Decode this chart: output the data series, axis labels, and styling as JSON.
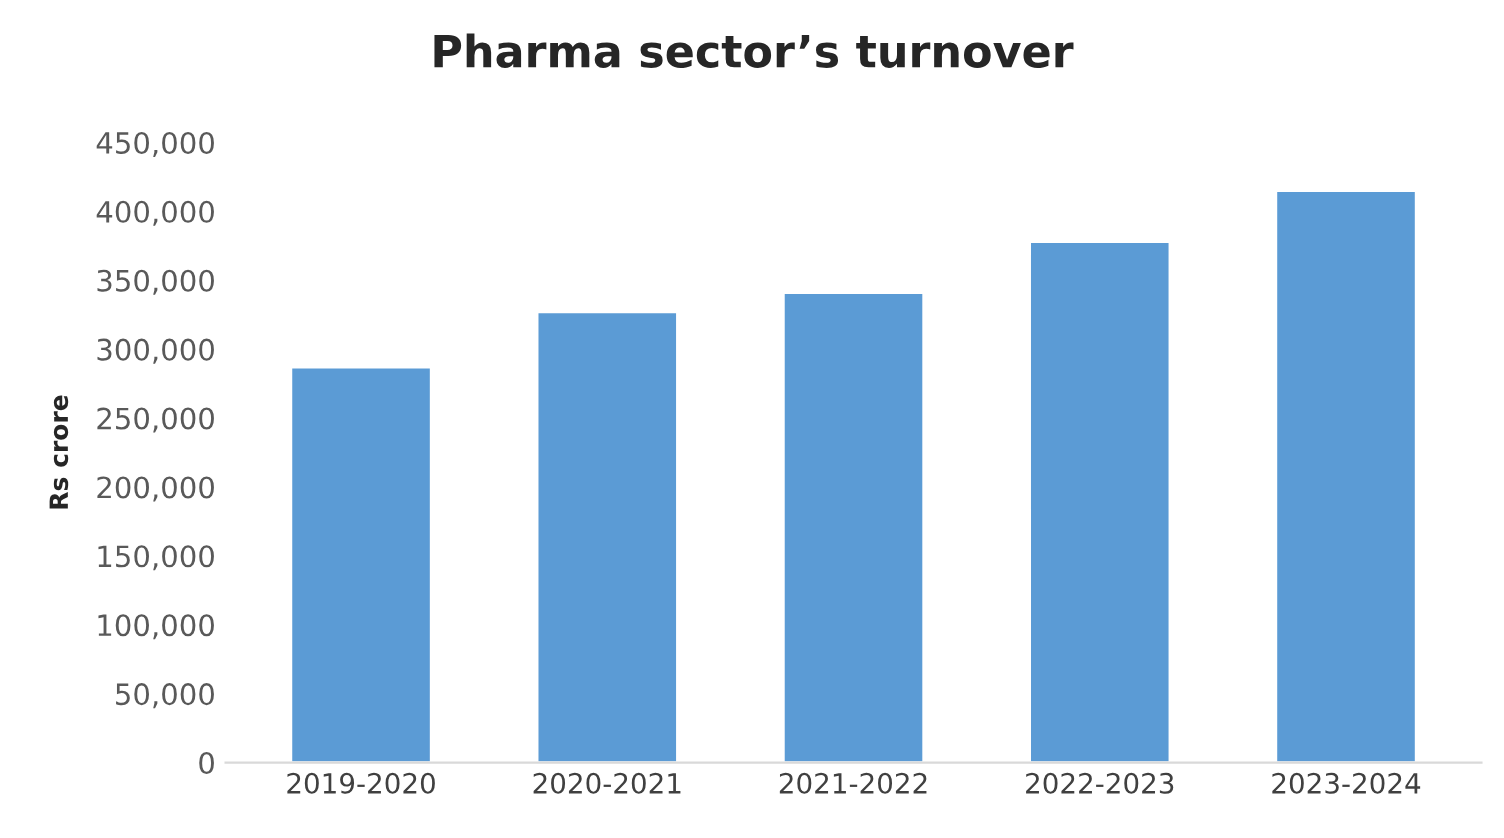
{
  "chart_data": {
    "type": "bar",
    "title": "Pharma sector’s turnover",
    "ylabel": "Rs crore",
    "categories": [
      "2019-2020",
      "2020-2021",
      "2021-2022",
      "2022-2023",
      "2023-2024"
    ],
    "values": [
      287000,
      327000,
      341000,
      378000,
      415000
    ],
    "color": "#5b9bd5",
    "ylim": [
      0,
      450000
    ],
    "yticks": [
      {
        "value": 0,
        "label": "0"
      },
      {
        "value": 50000,
        "label": "50,000"
      },
      {
        "value": 100000,
        "label": "100,000"
      },
      {
        "value": 150000,
        "label": "150,000"
      },
      {
        "value": 200000,
        "label": "200,000"
      },
      {
        "value": 250000,
        "label": "250,000"
      },
      {
        "value": 300000,
        "label": "300,000"
      },
      {
        "value": 350000,
        "label": "350,000"
      },
      {
        "value": 400000,
        "label": "400,000"
      },
      {
        "value": 450000,
        "label": "450,000"
      }
    ],
    "grid": false,
    "legend": false
  }
}
